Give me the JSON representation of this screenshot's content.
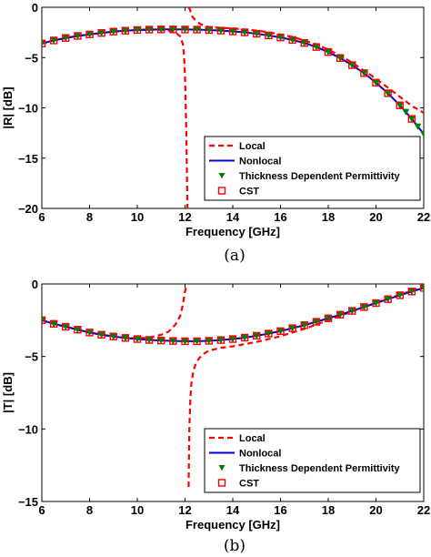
{
  "chart_data": [
    {
      "type": "line",
      "caption": "(a)",
      "xlabel": "Frequency [GHz]",
      "ylabel": "|R| [dB]",
      "xlim": [
        6,
        22
      ],
      "ylim": [
        -20,
        0
      ],
      "xticks": [
        6,
        8,
        10,
        12,
        14,
        16,
        18,
        20,
        22
      ],
      "yticks": [
        -20,
        -15,
        -10,
        -5,
        0
      ],
      "grid": false,
      "legend_position": "bottom-right",
      "series": [
        {
          "name": "Local",
          "color": "#ff0000",
          "style": "dashed",
          "x": [
            6,
            6.5,
            7,
            7.5,
            8,
            8.5,
            9,
            9.5,
            10,
            10.5,
            11,
            11.3,
            11.6,
            11.8,
            11.9,
            11.95,
            12.0,
            12.05,
            12.1
          ],
          "y": [
            -3.6,
            -3.3,
            -3.05,
            -2.85,
            -2.7,
            -2.55,
            -2.42,
            -2.33,
            -2.26,
            -2.22,
            -2.25,
            -2.3,
            -2.5,
            -2.9,
            -3.6,
            -4.5,
            -7,
            -12,
            -20
          ],
          "x2": [
            12.15,
            12.2,
            12.25,
            12.3,
            12.4,
            12.6,
            12.8,
            13,
            13.5,
            14,
            14.5,
            15,
            15.5,
            16,
            16.5,
            17,
            17.5,
            18,
            18.5,
            19,
            19.5,
            20,
            20.5,
            21,
            21.5,
            22
          ],
          "y2": [
            0,
            -0.2,
            -0.6,
            -0.9,
            -1.2,
            -1.6,
            -1.85,
            -1.95,
            -2.05,
            -2.1,
            -2.2,
            -2.32,
            -2.48,
            -2.7,
            -2.95,
            -3.3,
            -3.7,
            -4.2,
            -4.8,
            -5.5,
            -6.3,
            -7.1,
            -8.0,
            -8.9,
            -9.8,
            -10.5
          ]
        },
        {
          "name": "Nonlocal",
          "color": "#0000cc",
          "style": "solid",
          "x": [
            6,
            6.5,
            7,
            7.5,
            8,
            8.5,
            9,
            9.5,
            10,
            10.5,
            11,
            11.5,
            12,
            12.5,
            13,
            13.5,
            14,
            14.5,
            15,
            15.5,
            16,
            16.5,
            17,
            17.5,
            18,
            18.5,
            19,
            19.5,
            20,
            20.5,
            21,
            21.5,
            22
          ],
          "y": [
            -3.6,
            -3.3,
            -3.05,
            -2.85,
            -2.7,
            -2.55,
            -2.42,
            -2.33,
            -2.26,
            -2.22,
            -2.2,
            -2.2,
            -2.21,
            -2.22,
            -2.26,
            -2.32,
            -2.4,
            -2.5,
            -2.63,
            -2.8,
            -3.0,
            -3.25,
            -3.55,
            -3.95,
            -4.45,
            -5.05,
            -5.75,
            -6.55,
            -7.5,
            -8.55,
            -9.75,
            -11.1,
            -12.6
          ]
        },
        {
          "name": "Thickness Dependent Permittivity",
          "color": "#008000",
          "style": "triangle-down markers",
          "x": [
            6,
            6.5,
            7,
            7.5,
            8,
            8.5,
            9,
            9.5,
            10,
            10.5,
            11,
            11.5,
            12,
            12.5,
            13,
            13.5,
            14,
            14.5,
            15,
            15.5,
            16,
            16.5,
            17,
            17.5,
            18,
            18.5,
            19,
            19.5,
            20,
            20.5,
            21,
            21.25,
            21.5,
            21.75,
            22
          ],
          "y": [
            -3.6,
            -3.3,
            -3.05,
            -2.85,
            -2.7,
            -2.55,
            -2.42,
            -2.33,
            -2.26,
            -2.22,
            -2.2,
            -2.2,
            -2.21,
            -2.22,
            -2.26,
            -2.32,
            -2.4,
            -2.5,
            -2.63,
            -2.8,
            -3.0,
            -3.25,
            -3.55,
            -3.95,
            -4.45,
            -5.05,
            -5.75,
            -6.55,
            -7.5,
            -8.55,
            -9.75,
            -10.4,
            -11.1,
            -11.85,
            -12.6
          ]
        },
        {
          "name": "CST",
          "color": "#ff0000",
          "style": "open-square markers",
          "x": [
            6,
            6.5,
            7,
            7.5,
            8,
            8.5,
            9,
            9.5,
            10,
            10.5,
            11,
            11.5,
            12,
            12.5,
            13,
            13.5,
            14,
            14.5,
            15,
            15.5,
            16,
            16.5,
            17,
            17.5,
            18,
            18.5,
            19,
            19.5,
            20,
            20.5,
            21,
            21.5
          ],
          "y": [
            -3.6,
            -3.3,
            -3.05,
            -2.85,
            -2.7,
            -2.55,
            -2.42,
            -2.33,
            -2.26,
            -2.22,
            -2.2,
            -2.2,
            -2.21,
            -2.22,
            -2.26,
            -2.32,
            -2.4,
            -2.5,
            -2.63,
            -2.8,
            -3.0,
            -3.25,
            -3.55,
            -3.95,
            -4.45,
            -5.05,
            -5.75,
            -6.55,
            -7.5,
            -8.55,
            -9.75,
            -11.1
          ]
        }
      ]
    },
    {
      "type": "line",
      "caption": "(b)",
      "xlabel": "Frequency [GHz]",
      "ylabel": "|T| [dB]",
      "xlim": [
        6,
        22
      ],
      "ylim": [
        -15,
        0
      ],
      "xticks": [
        6,
        8,
        10,
        12,
        14,
        16,
        18,
        20,
        22
      ],
      "yticks": [
        -15,
        -10,
        -5,
        0
      ],
      "grid": false,
      "legend_position": "bottom-right",
      "series": [
        {
          "name": "Local",
          "color": "#ff0000",
          "style": "dashed",
          "x": [
            6,
            6.5,
            7,
            7.5,
            8,
            8.5,
            9,
            9.5,
            10,
            10.5,
            11,
            11.3,
            11.6,
            11.8,
            11.9,
            11.95,
            12.0,
            12.05,
            12.1
          ],
          "y": [
            -2.5,
            -2.75,
            -2.95,
            -3.15,
            -3.35,
            -3.5,
            -3.62,
            -3.72,
            -3.75,
            -3.7,
            -3.5,
            -3.3,
            -2.8,
            -2.2,
            -1.5,
            -1.0,
            -0.5,
            -0.2,
            0
          ],
          "x2": [
            12.15,
            12.18,
            12.22,
            12.27,
            12.35,
            12.45,
            12.6,
            12.8,
            13,
            13.5,
            14,
            14.5,
            15,
            15.5,
            16,
            16.5,
            17,
            17.5,
            18,
            18.5,
            19,
            19.5,
            20,
            20.5,
            21,
            21.5,
            22
          ],
          "y2": [
            -14,
            -10,
            -8,
            -6.8,
            -6.0,
            -5.5,
            -5.1,
            -4.8,
            -4.6,
            -4.4,
            -4.3,
            -4.15,
            -4.0,
            -3.8,
            -3.6,
            -3.35,
            -3.1,
            -2.8,
            -2.5,
            -2.2,
            -1.9,
            -1.6,
            -1.3,
            -1.0,
            -0.75,
            -0.45,
            -0.2
          ]
        },
        {
          "name": "Nonlocal",
          "color": "#0000cc",
          "style": "solid",
          "x": [
            6,
            6.5,
            7,
            7.5,
            8,
            8.5,
            9,
            9.5,
            10,
            10.5,
            11,
            11.5,
            12,
            12.5,
            13,
            13.5,
            14,
            14.5,
            15,
            15.5,
            16,
            16.5,
            17,
            17.5,
            18,
            18.5,
            19,
            19.5,
            20,
            20.5,
            21,
            21.5,
            22
          ],
          "y": [
            -2.5,
            -2.75,
            -2.95,
            -3.15,
            -3.35,
            -3.5,
            -3.62,
            -3.72,
            -3.8,
            -3.86,
            -3.9,
            -3.93,
            -3.95,
            -3.95,
            -3.92,
            -3.87,
            -3.8,
            -3.7,
            -3.57,
            -3.42,
            -3.25,
            -3.05,
            -2.84,
            -2.61,
            -2.37,
            -2.12,
            -1.86,
            -1.59,
            -1.32,
            -1.05,
            -0.78,
            -0.52,
            -0.27
          ]
        },
        {
          "name": "Thickness Dependent Permittivity",
          "color": "#008000",
          "style": "triangle-down markers",
          "x": [
            6,
            6.5,
            7,
            7.5,
            8,
            8.5,
            9,
            9.5,
            10,
            10.5,
            11,
            11.5,
            12,
            12.5,
            13,
            13.5,
            14,
            14.5,
            15,
            15.5,
            16,
            16.5,
            17,
            17.5,
            18,
            18.5,
            19,
            19.5,
            20,
            20.5,
            21,
            21.5,
            22
          ],
          "y": [
            -2.5,
            -2.75,
            -2.95,
            -3.15,
            -3.35,
            -3.5,
            -3.62,
            -3.72,
            -3.8,
            -3.86,
            -3.9,
            -3.93,
            -3.95,
            -3.95,
            -3.92,
            -3.87,
            -3.8,
            -3.7,
            -3.57,
            -3.42,
            -3.25,
            -3.05,
            -2.84,
            -2.61,
            -2.37,
            -2.12,
            -1.86,
            -1.59,
            -1.32,
            -1.05,
            -0.78,
            -0.52,
            -0.27
          ]
        },
        {
          "name": "CST",
          "color": "#ff0000",
          "style": "open-square markers",
          "x": [
            6,
            6.5,
            7,
            7.5,
            8,
            8.5,
            9,
            9.5,
            10,
            10.5,
            11,
            11.5,
            12,
            12.5,
            13,
            13.5,
            14,
            14.5,
            15,
            15.5,
            16,
            16.5,
            17,
            17.5,
            18,
            18.5,
            19,
            19.5,
            20,
            20.5,
            21,
            21.5,
            22
          ],
          "y": [
            -2.5,
            -2.75,
            -2.95,
            -3.15,
            -3.35,
            -3.5,
            -3.62,
            -3.72,
            -3.8,
            -3.86,
            -3.9,
            -3.93,
            -3.95,
            -3.95,
            -3.92,
            -3.87,
            -3.8,
            -3.7,
            -3.57,
            -3.42,
            -3.25,
            -3.05,
            -2.84,
            -2.61,
            -2.37,
            -2.12,
            -1.86,
            -1.59,
            -1.32,
            -1.05,
            -0.78,
            -0.52,
            -0.27
          ]
        }
      ]
    }
  ]
}
